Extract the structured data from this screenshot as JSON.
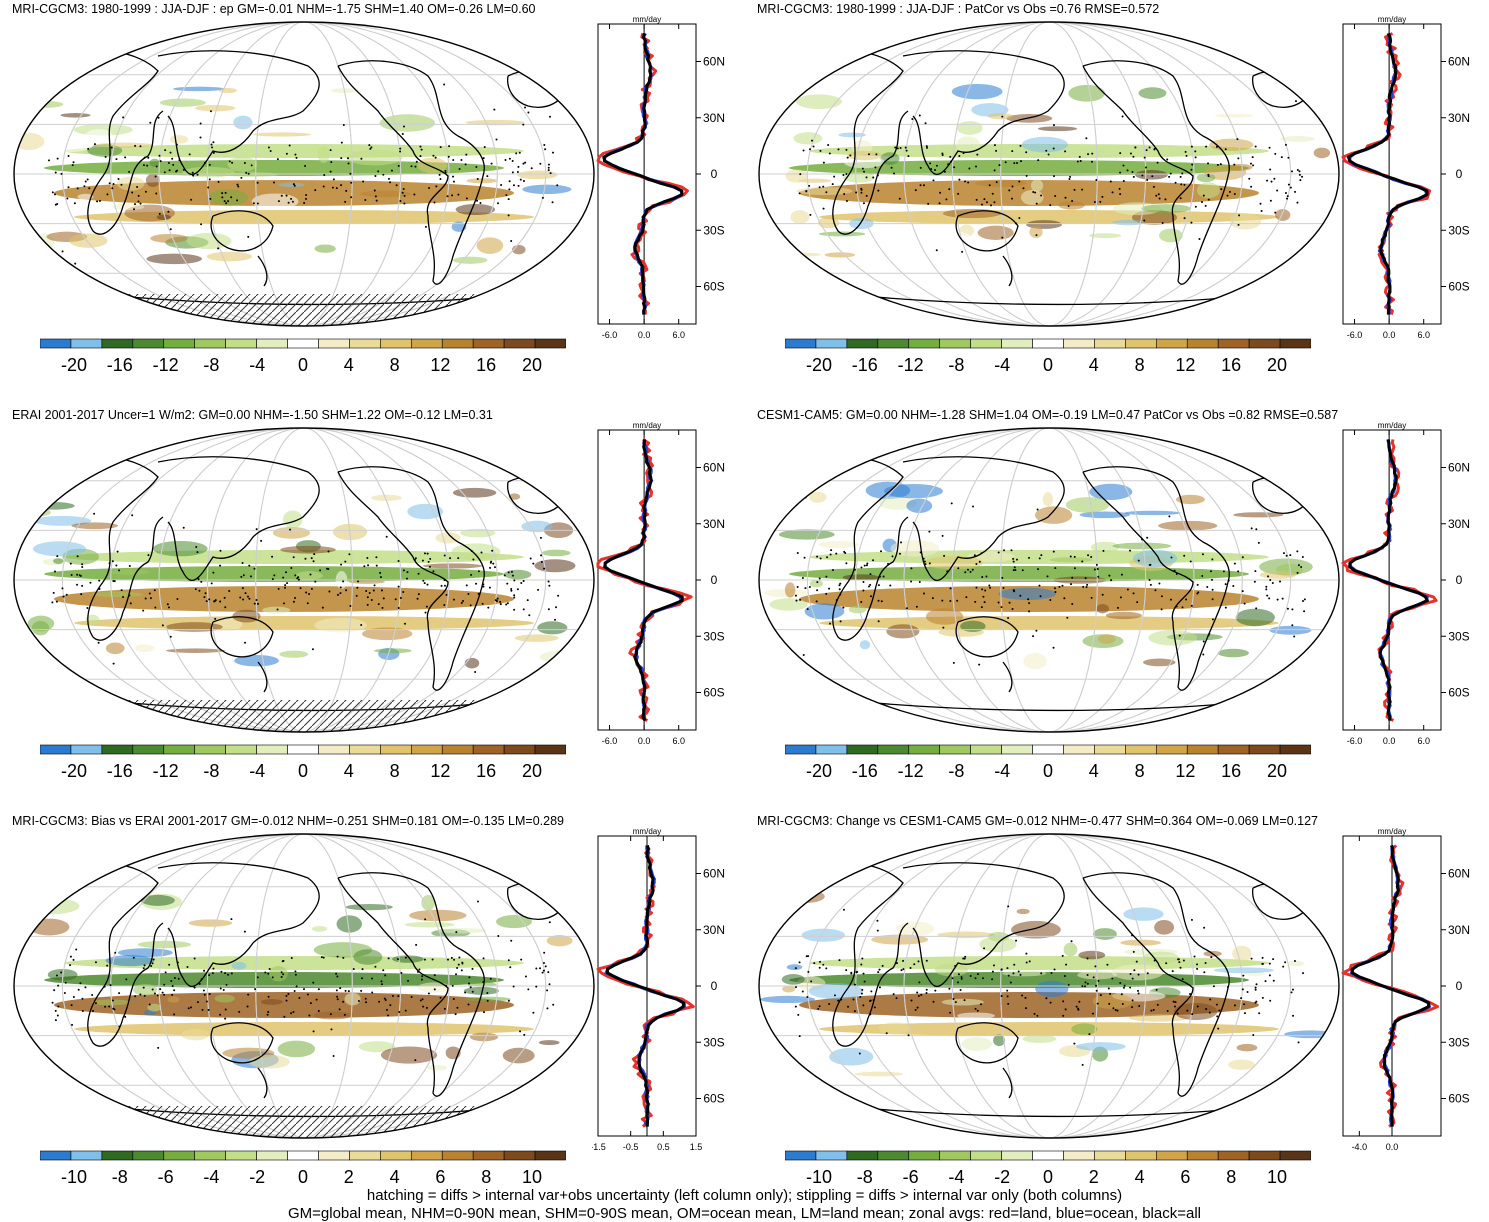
{
  "panels": [
    {
      "id": "p1",
      "title": "MRI-CGCM3: 1980-1999 : JJA-DJF : ep GM=-0.01 NHM=-1.75 SHM=1.40 OM=-0.26 LM=0.60",
      "zonal_unit": "mm/day",
      "zonal_xticks": [
        "-6.0",
        "0.0",
        "6.0"
      ],
      "zonal_xrange": [
        -8,
        9
      ],
      "zonal_lat_ticks": [
        "60N",
        "30N",
        "0",
        "30S",
        "60S"
      ],
      "colorbar": {
        "labels": [
          "-20",
          "-16",
          "-12",
          "-8",
          "-4",
          "0",
          "4",
          "8",
          "12",
          "16",
          "20"
        ]
      },
      "hatching": true
    },
    {
      "id": "p2",
      "title": "MRI-CGCM3: 1980-1999 : JJA-DJF : PatCor vs Obs =0.76 RMSE=0.572",
      "zonal_unit": "mm/day",
      "zonal_xticks": [
        "-6.0",
        "0.0",
        "6.0"
      ],
      "zonal_xrange": [
        -8,
        9
      ],
      "zonal_lat_ticks": [
        "60N",
        "30N",
        "0",
        "30S",
        "60S"
      ],
      "colorbar": {
        "labels": [
          "-20",
          "-16",
          "-12",
          "-8",
          "-4",
          "0",
          "4",
          "8",
          "12",
          "16",
          "20"
        ]
      },
      "hatching": false
    },
    {
      "id": "p3",
      "title": "ERAI 2001-2017 Uncer=1 W/m2: GM=0.00 NHM=-1.50 SHM=1.22 OM=-0.12 LM=0.31",
      "zonal_unit": "mm/day",
      "zonal_xticks": [
        "-6.0",
        "0.0",
        "6.0"
      ],
      "zonal_xrange": [
        -8,
        9
      ],
      "zonal_lat_ticks": [
        "60N",
        "30N",
        "0",
        "30S",
        "60S"
      ],
      "colorbar": {
        "labels": [
          "-20",
          "-16",
          "-12",
          "-8",
          "-4",
          "0",
          "4",
          "8",
          "12",
          "16",
          "20"
        ]
      },
      "hatching": true
    },
    {
      "id": "p4",
      "title": "CESM1-CAM5: GM=0.00 NHM=-1.28 SHM=1.04 OM=-0.19 LM=0.47 PatCor vs Obs =0.82 RMSE=0.587",
      "zonal_unit": "mm/day",
      "zonal_xticks": [
        "-6.0",
        "0.0",
        "6.0"
      ],
      "zonal_xrange": [
        -8,
        9
      ],
      "zonal_lat_ticks": [
        "60N",
        "30N",
        "0",
        "30S",
        "60S"
      ],
      "colorbar": {
        "labels": [
          "-20",
          "-16",
          "-12",
          "-8",
          "-4",
          "0",
          "4",
          "8",
          "12",
          "16",
          "20"
        ]
      },
      "hatching": false
    },
    {
      "id": "p5",
      "title": "MRI-CGCM3: Bias vs ERAI 2001-2017 GM=-0.012 NHM=-0.251 SHM=0.181 OM=-0.135 LM=0.289",
      "zonal_unit": "mm/day",
      "zonal_xticks": [
        "-1.5",
        "-0.5",
        "0.5",
        "1.5"
      ],
      "zonal_xrange": [
        -1.5,
        1.5
      ],
      "zonal_lat_ticks": [
        "60N",
        "30N",
        "0",
        "30S",
        "60S"
      ],
      "colorbar": {
        "labels": [
          "-10",
          "-8",
          "-6",
          "-4",
          "-2",
          "0",
          "2",
          "4",
          "6",
          "8",
          "10"
        ]
      },
      "hatching": true
    },
    {
      "id": "p6",
      "title": "MRI-CGCM3: Change vs CESM1-CAM5 GM=-0.012 NHM=-0.477 SHM=0.364 OM=-0.069 LM=0.127",
      "zonal_unit": "mm/day",
      "zonal_xticks": [
        "-4.0",
        "0.0"
      ],
      "zonal_xrange": [
        -6,
        6
      ],
      "zonal_lat_ticks": [
        "60N",
        "30N",
        "0",
        "30S",
        "60S"
      ],
      "colorbar": {
        "labels": [
          "-10",
          "-8",
          "-6",
          "-4",
          "-2",
          "0",
          "2",
          "4",
          "6",
          "8",
          "10"
        ]
      },
      "hatching": false
    }
  ],
  "colors": {
    "land_line": "#e8312a",
    "ocean_line": "#1f3fe0",
    "all_line": "#000000",
    "palette": [
      "#2b7bd1",
      "#7fc0ea",
      "#2e6a22",
      "#4b8a2e",
      "#76ad3f",
      "#9fc85e",
      "#c3de88",
      "#e2eebd",
      "#ffffff",
      "#f3ecc6",
      "#eadb98",
      "#dfc46c",
      "#d0a447",
      "#b9822e",
      "#9e6325",
      "#7d4a1e",
      "#5a3417"
    ]
  },
  "footer": {
    "line1": "hatching = diffs > internal var+obs uncertainty (left column only); stippling = diffs > internal var only (both columns)",
    "line2": "GM=global mean, NHM=0-90N mean, SHM=0-90S mean, OM=ocean mean, LM=land mean; zonal avgs: red=land, blue=ocean, black=all"
  }
}
